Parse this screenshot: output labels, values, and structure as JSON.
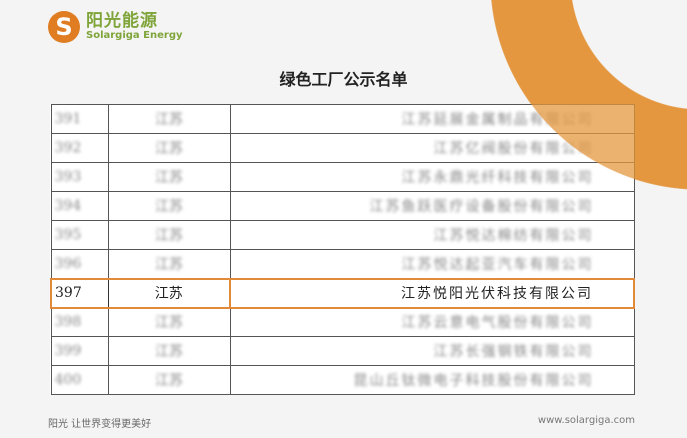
{
  "logo": {
    "mark": "S",
    "cn": "阳光能源",
    "en": "Solargiga Energy"
  },
  "title": "绿色工厂公示名单",
  "rows": [
    {
      "no": "391",
      "province": "江苏",
      "company": "江苏延展金属制品有限公司"
    },
    {
      "no": "392",
      "province": "江苏",
      "company": "江苏亿阀股份有限公司"
    },
    {
      "no": "393",
      "province": "江苏",
      "company": "江苏永鼎光纤科技有限公司"
    },
    {
      "no": "394",
      "province": "江苏",
      "company": "江苏鱼跃医疗设备股份有限公司"
    },
    {
      "no": "395",
      "province": "江苏",
      "company": "江苏悦达棉纺有限公司"
    },
    {
      "no": "396",
      "province": "江苏",
      "company": "江苏悦达起亚汽车有限公司"
    },
    {
      "no": "397",
      "province": "江苏",
      "company": "江苏悦阳光伏科技有限公司"
    },
    {
      "no": "398",
      "province": "江苏",
      "company": "江苏云意电气股份有限公司"
    },
    {
      "no": "399",
      "province": "江苏",
      "company": "江苏长强钢铁有限公司"
    },
    {
      "no": "400",
      "province": "江苏",
      "company": "昆山丘钛微电子科技股份有限公司"
    }
  ],
  "highlight_color": "#e38a3a",
  "accent_color": "#e4973f",
  "footer": {
    "slogan": "阳光 让世界变得更美好",
    "url": "www.solargiga.com"
  }
}
